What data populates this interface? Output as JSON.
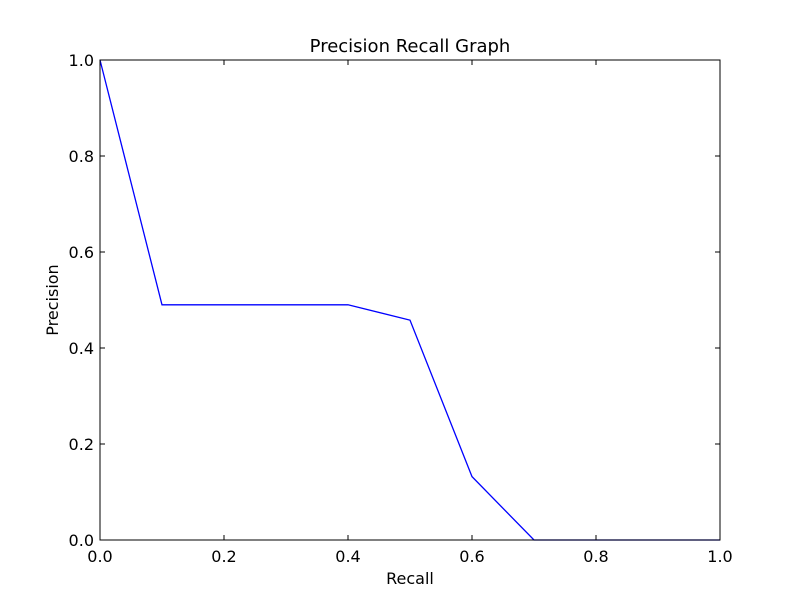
{
  "chart_data": {
    "type": "line",
    "title": "Precision Recall Graph",
    "xlabel": "Recall",
    "ylabel": "Precision",
    "xlim": [
      0.0,
      1.0
    ],
    "ylim": [
      0.0,
      1.0
    ],
    "xticks": [
      "0.0",
      "0.2",
      "0.4",
      "0.6",
      "0.8",
      "1.0"
    ],
    "yticks": [
      "0.0",
      "0.2",
      "0.4",
      "0.6",
      "0.8",
      "1.0"
    ],
    "grid": false,
    "series": [
      {
        "color": "#0000ff",
        "x": [
          0.0,
          0.1,
          0.2,
          0.3,
          0.4,
          0.5,
          0.6,
          0.7,
          0.8,
          0.9,
          1.0
        ],
        "y": [
          1.0,
          0.49,
          0.49,
          0.49,
          0.49,
          0.458,
          0.132,
          0.0,
          0.0,
          0.0,
          0.0
        ]
      }
    ]
  }
}
